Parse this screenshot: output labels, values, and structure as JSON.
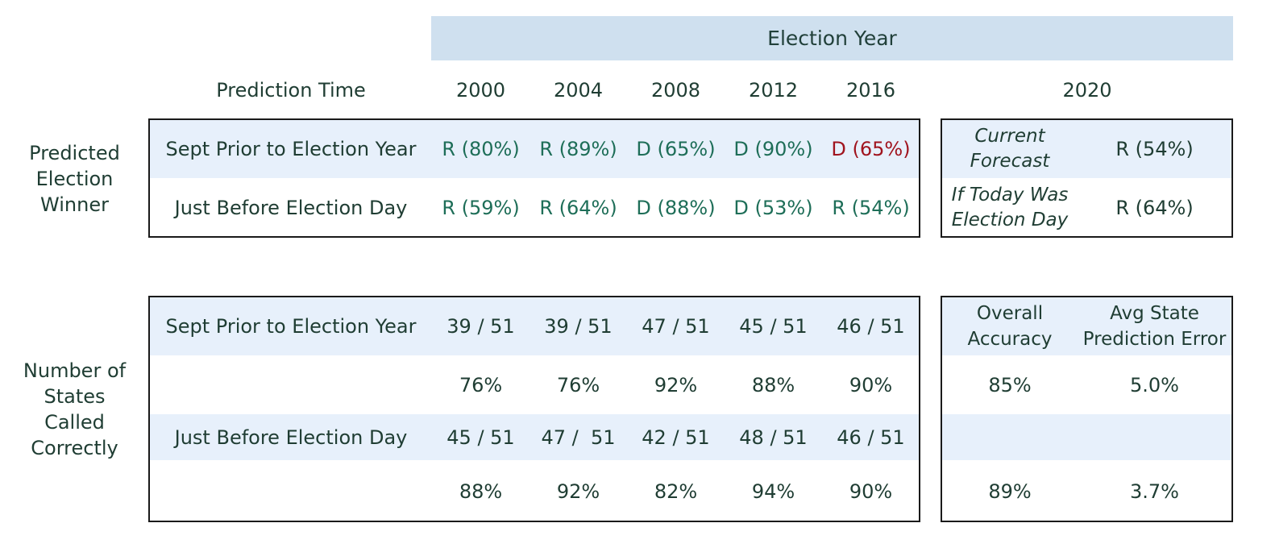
{
  "chart_data": {
    "type": "table",
    "title": "Election Year",
    "column_header": "Prediction Time",
    "years": [
      "2000",
      "2004",
      "2008",
      "2012",
      "2016"
    ],
    "current_year": "2020",
    "colors": {
      "header_band": "#cfe0ef",
      "row_band": "#e7f0fb",
      "correct": "#1e6e58",
      "incorrect": "#a0141e",
      "text": "#1f3d33"
    },
    "predicted_winner": {
      "section_label": "Predicted Election Winner",
      "rows": [
        {
          "time": "Sept Prior to Election Year",
          "values": [
            "R (80%)",
            "R (89%)",
            "D (65%)",
            "D (90%)",
            "D (65%)"
          ],
          "correct": [
            true,
            true,
            true,
            true,
            false
          ],
          "current_label": "Current Forecast",
          "current_value": "R (54%)"
        },
        {
          "time": "Just Before Election Day",
          "values": [
            "R (59%)",
            "R (64%)",
            "D (88%)",
            "D (53%)",
            "R (54%)"
          ],
          "correct": [
            true,
            true,
            true,
            true,
            true
          ],
          "current_label": "If Today Was Election Day",
          "current_value": "R (64%)"
        }
      ]
    },
    "states_called": {
      "section_label": "Number of States Called Correctly",
      "current_headers": [
        "Overall Accuracy",
        "Avg State Prediction Error"
      ],
      "rows": [
        {
          "time": "Sept Prior to Election Year",
          "counts": [
            "39 / 51",
            "39 / 51",
            "47 / 51",
            "45 / 51",
            "46 / 51"
          ],
          "percents": [
            "76%",
            "76%",
            "92%",
            "88%",
            "90%"
          ],
          "overall_accuracy": "85%",
          "avg_error": "5.0%"
        },
        {
          "time": "Just Before Election Day",
          "counts": [
            "45 / 51",
            "47 /  51",
            "42 / 51",
            "48 / 51",
            "46 / 51"
          ],
          "percents": [
            "88%",
            "92%",
            "82%",
            "94%",
            "90%"
          ],
          "overall_accuracy": "89%",
          "avg_error": "3.7%"
        }
      ]
    }
  }
}
